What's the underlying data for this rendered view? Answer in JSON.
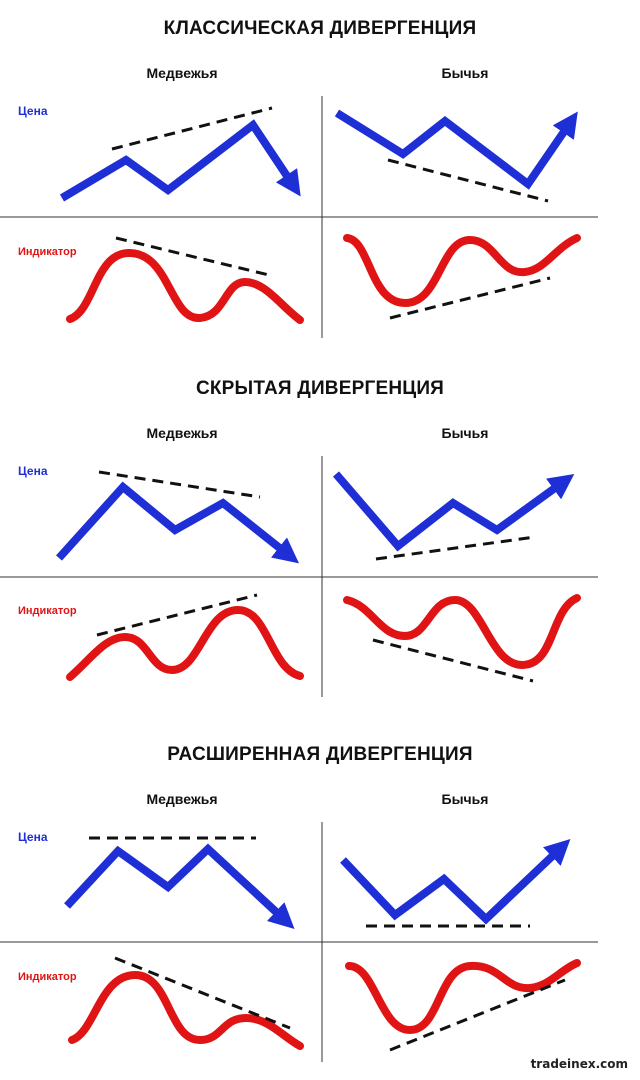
{
  "sections": [
    {
      "title": "КЛАССИЧЕСКАЯ ДИВЕРГЕНЦИЯ",
      "bearish_label": "Медвежья",
      "bullish_label": "Бычья",
      "price_label": "Цена",
      "indicator_label": "Индикатор"
    },
    {
      "title": "СКРЫТАЯ ДИВЕРГЕНЦИЯ",
      "bearish_label": "Медвежья",
      "bullish_label": "Бычья",
      "price_label": "Цена",
      "indicator_label": "Индикатор"
    },
    {
      "title": "РАСШИРЕННАЯ ДИВЕРГЕНЦИЯ",
      "bearish_label": "Медвежья",
      "bullish_label": "Бычья",
      "price_label": "Цена",
      "indicator_label": "Индикатор"
    }
  ],
  "watermark": "tradeinex.com",
  "colors": {
    "price": "#1f2fd6",
    "indicator": "#e01414",
    "trendline": "#111111",
    "grid": "#333333"
  }
}
